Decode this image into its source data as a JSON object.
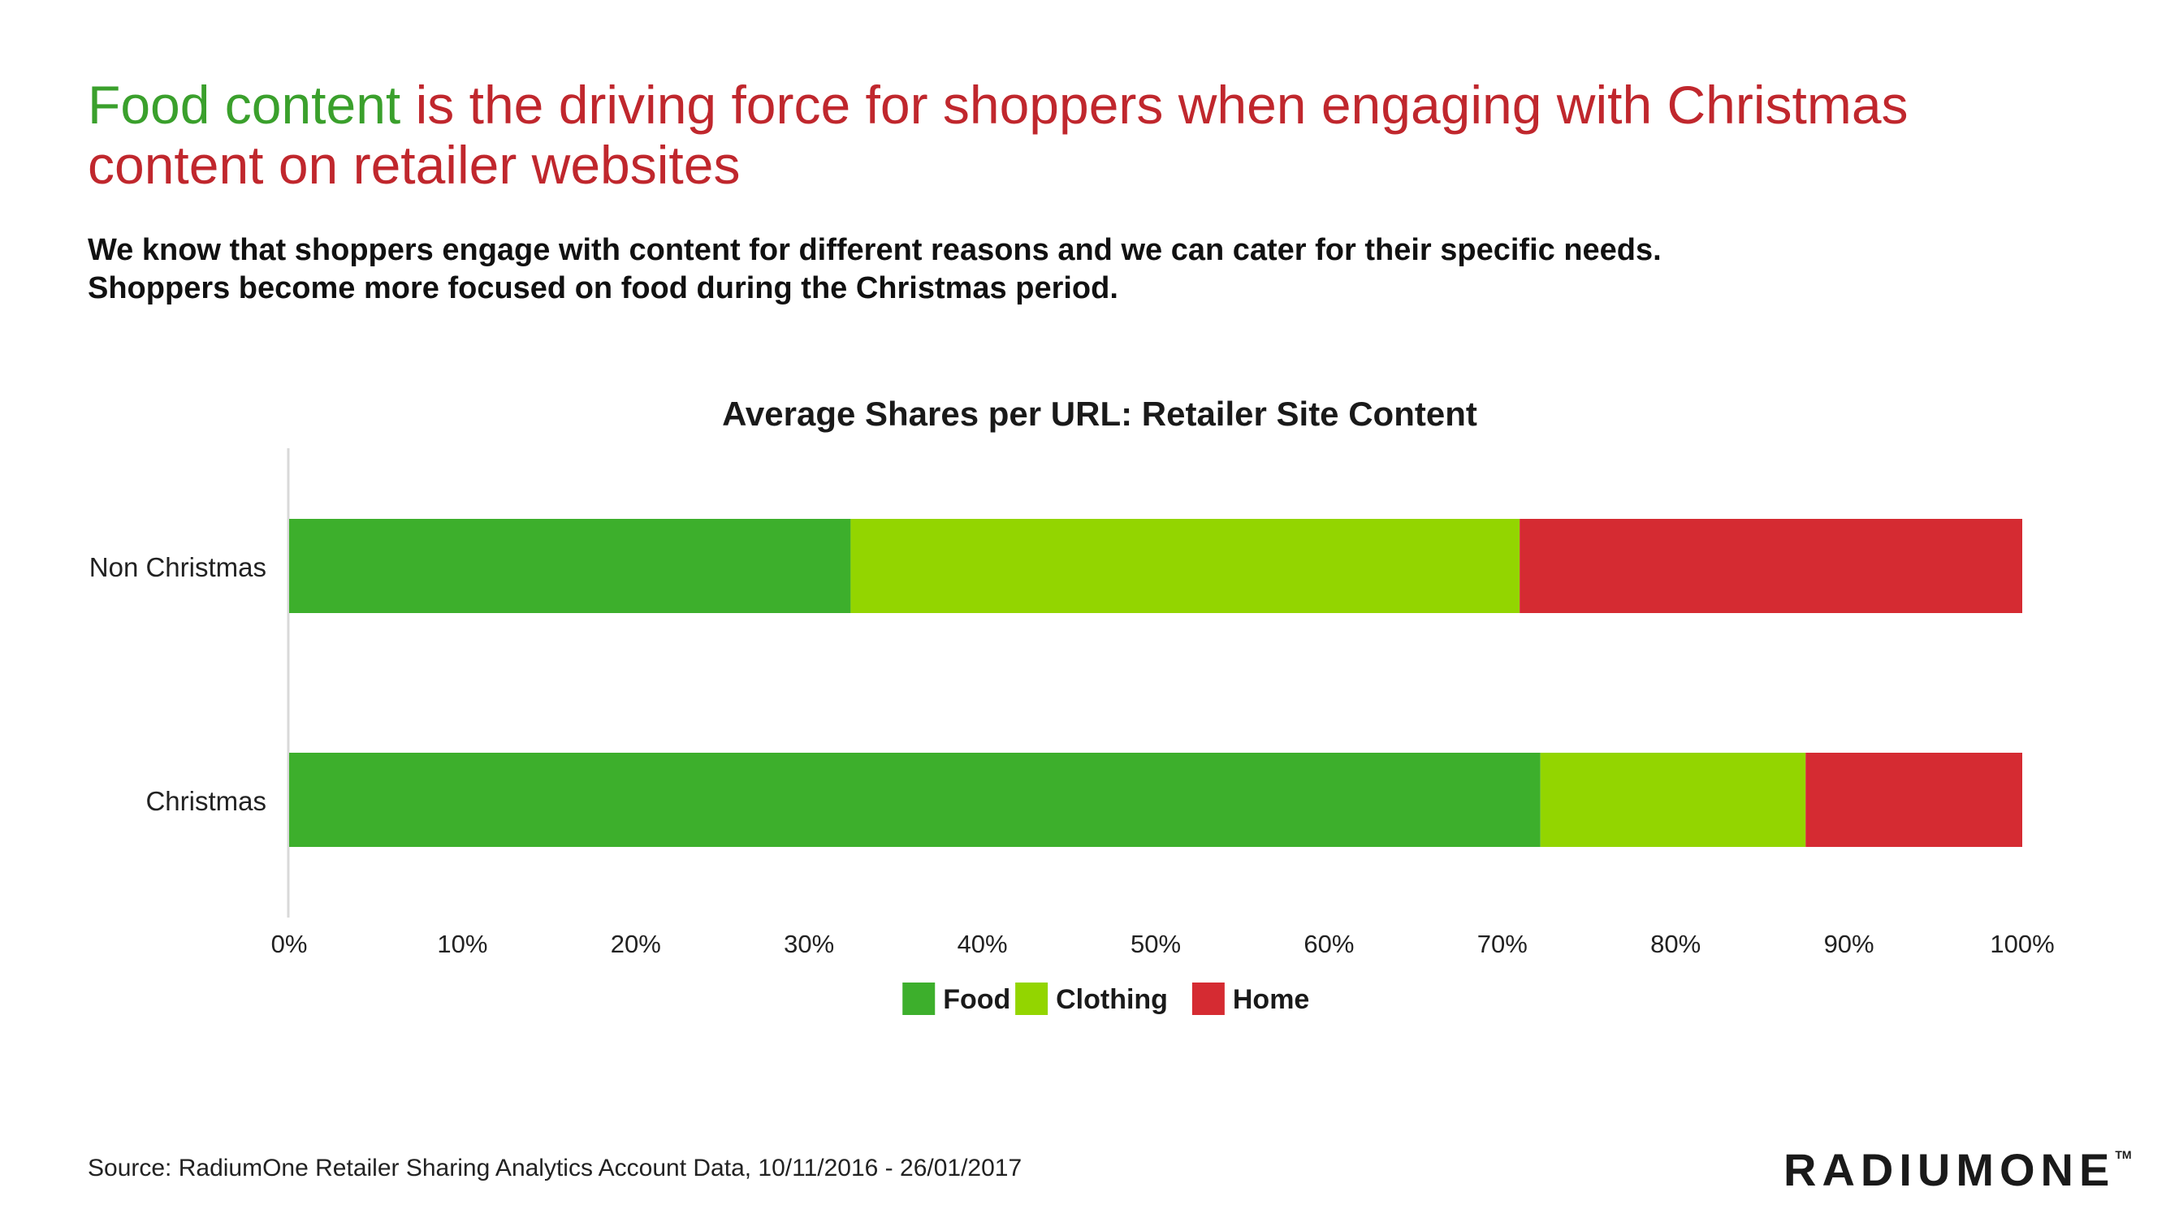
{
  "headline": {
    "highlight": "Food content",
    "rest": " is the driving force for shoppers when engaging with Christmas content on retailer websites"
  },
  "subtext": {
    "line1": "We know that shoppers engage with content for different reasons and we can cater for their specific needs.",
    "line2": "Shoppers become more focused on food during the Christmas period."
  },
  "colors": {
    "headline_red": "#c0272d",
    "headline_green": "#3aa02c",
    "food": "#3daf2c",
    "clothing": "#93d500",
    "home": "#d52b32",
    "axis": "#d9d9d9"
  },
  "chart_data": {
    "type": "bar",
    "orientation": "horizontal",
    "stacked": "percent",
    "title": "Average Shares per URL: Retailer Site Content",
    "categories": [
      "Non Christmas",
      "Christmas"
    ],
    "series": [
      {
        "name": "Food",
        "values": [
          32.4,
          72.2
        ],
        "color": "#3daf2c"
      },
      {
        "name": "Clothing",
        "values": [
          38.6,
          15.3
        ],
        "color": "#93d500"
      },
      {
        "name": "Home",
        "values": [
          29.0,
          12.5
        ],
        "color": "#d52b32"
      }
    ],
    "xlim": [
      0,
      100
    ],
    "xticks": [
      "0%",
      "10%",
      "20%",
      "30%",
      "40%",
      "50%",
      "60%",
      "70%",
      "80%",
      "90%",
      "100%"
    ],
    "xlabel": "",
    "ylabel": "",
    "grid": false,
    "legend": "bottom-center"
  },
  "footer": {
    "source": "Source: RadiumOne Retailer Sharing Analytics Account Data, 10/11/2016 - 26/01/2017",
    "logo_text": "RADIUMONE",
    "logo_mark": "TM"
  }
}
